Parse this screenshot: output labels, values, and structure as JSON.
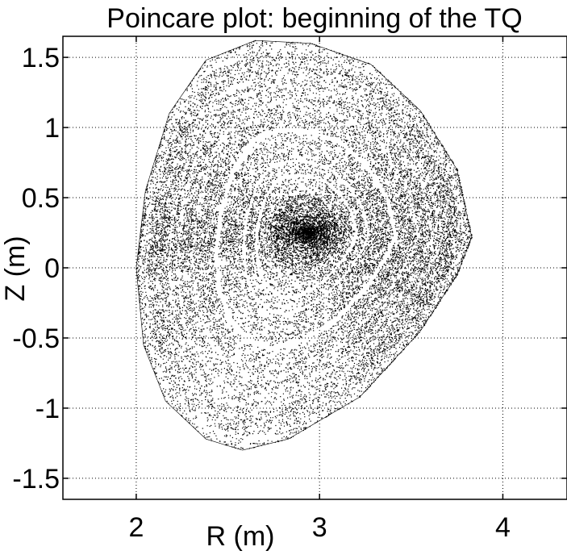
{
  "chart_data": {
    "type": "scatter",
    "title": "Poincare plot: beginning of the TQ",
    "xlabel": "R (m)",
    "ylabel": "Z (m)",
    "xlim": [
      1.6,
      4.35
    ],
    "ylim": [
      -1.65,
      1.65
    ],
    "xticks": [
      2,
      3,
      4
    ],
    "xtick_labels": [
      "2",
      "3",
      "4"
    ],
    "yticks": [
      1.5,
      1,
      0.5,
      0,
      -0.5,
      -1,
      -1.5
    ],
    "ytick_labels": [
      "1.5",
      "1",
      "0.5",
      "0",
      "-0.5",
      "-1",
      "-1.5"
    ],
    "grid": true,
    "grid_style": "dotted",
    "legend": "none",
    "marker_color": "#000000",
    "series": [
      {
        "description_of_distribution": "dense cloud of Poincare puncture points forming nested flux surfaces",
        "magnetic_axis": {
          "R": 2.93,
          "Z": 0.25
        },
        "boundary": [
          {
            "R": 3.83,
            "Z": 0.22
          },
          {
            "R": 3.75,
            "Z": 0.7
          },
          {
            "R": 3.55,
            "Z": 1.12
          },
          {
            "R": 3.28,
            "Z": 1.45
          },
          {
            "R": 2.95,
            "Z": 1.6
          },
          {
            "R": 2.65,
            "Z": 1.62
          },
          {
            "R": 2.38,
            "Z": 1.48
          },
          {
            "R": 2.18,
            "Z": 1.1
          },
          {
            "R": 2.05,
            "Z": 0.55
          },
          {
            "R": 2.0,
            "Z": 0.0
          },
          {
            "R": 2.04,
            "Z": -0.55
          },
          {
            "R": 2.16,
            "Z": -0.95
          },
          {
            "R": 2.38,
            "Z": -1.22
          },
          {
            "R": 2.58,
            "Z": -1.3
          },
          {
            "R": 2.83,
            "Z": -1.22
          },
          {
            "R": 3.22,
            "Z": -0.92
          },
          {
            "R": 3.55,
            "Z": -0.45
          },
          {
            "R": 3.75,
            "Z": -0.05
          }
        ]
      }
    ]
  }
}
